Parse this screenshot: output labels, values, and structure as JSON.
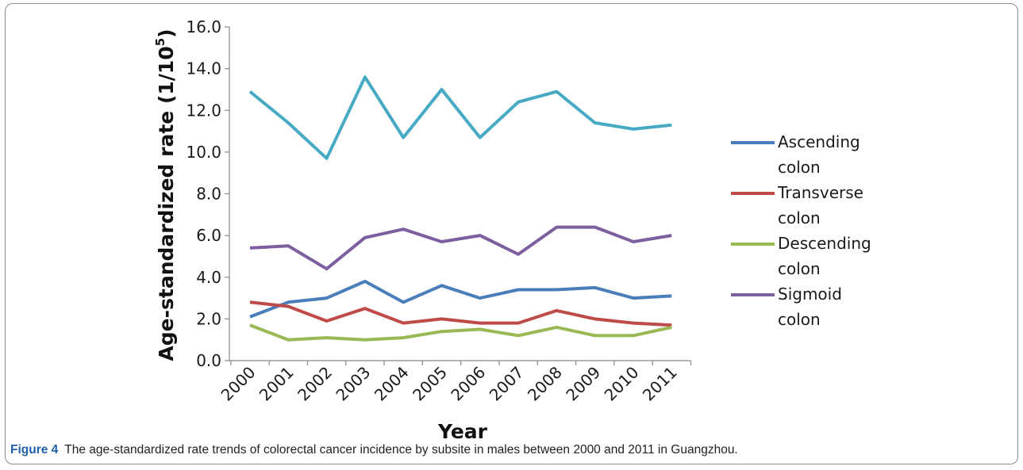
{
  "caption": {
    "label": "Figure 4",
    "text": "The age-standardized rate trends of colorectal cancer incidence by subsite in males between 2000 and 2011 in Guangzhou."
  },
  "chart_data": {
    "type": "line",
    "title": "",
    "xlabel": "Year",
    "ylabel_main": "Age-standardized rate (1/10",
    "ylabel_sup": "5",
    "ylabel_close": ")",
    "ylim": [
      0,
      16
    ],
    "yticks": [
      "0.0",
      "2.0",
      "4.0",
      "6.0",
      "8.0",
      "10.0",
      "12.0",
      "14.0",
      "16.0"
    ],
    "categories": [
      "2000",
      "2001",
      "2002",
      "2003",
      "2004",
      "2005",
      "2006",
      "2007",
      "2008",
      "2009",
      "2010",
      "2011"
    ],
    "grid": false,
    "legend_position": "right",
    "series": [
      {
        "name_lines": [
          "Ascending",
          "colon"
        ],
        "color": "#4a7ebb",
        "values": [
          2.1,
          2.8,
          3.0,
          3.8,
          2.8,
          3.6,
          3.0,
          3.4,
          3.4,
          3.5,
          3.0,
          3.1
        ],
        "in_legend": true
      },
      {
        "name_lines": [
          "Transverse",
          "colon"
        ],
        "color": "#be4b48",
        "values": [
          2.8,
          2.6,
          1.9,
          2.5,
          1.8,
          2.0,
          1.8,
          1.8,
          2.4,
          2.0,
          1.8,
          1.7
        ],
        "in_legend": true
      },
      {
        "name_lines": [
          "Descending",
          "colon"
        ],
        "color": "#98b954",
        "values": [
          1.7,
          1.0,
          1.1,
          1.0,
          1.1,
          1.4,
          1.5,
          1.2,
          1.6,
          1.2,
          1.2,
          1.6
        ],
        "in_legend": true
      },
      {
        "name_lines": [
          "Sigmoid",
          "colon"
        ],
        "color": "#7d5fa0",
        "values": [
          5.4,
          5.5,
          4.4,
          5.9,
          6.3,
          5.7,
          6.0,
          5.1,
          6.4,
          6.4,
          5.7,
          6.0
        ],
        "in_legend": true
      },
      {
        "name_lines": [],
        "color": "#46aac5",
        "values": [
          12.9,
          11.4,
          9.7,
          13.6,
          10.7,
          13.0,
          10.7,
          12.4,
          12.9,
          11.4,
          11.1,
          11.3
        ],
        "in_legend": false
      }
    ]
  }
}
